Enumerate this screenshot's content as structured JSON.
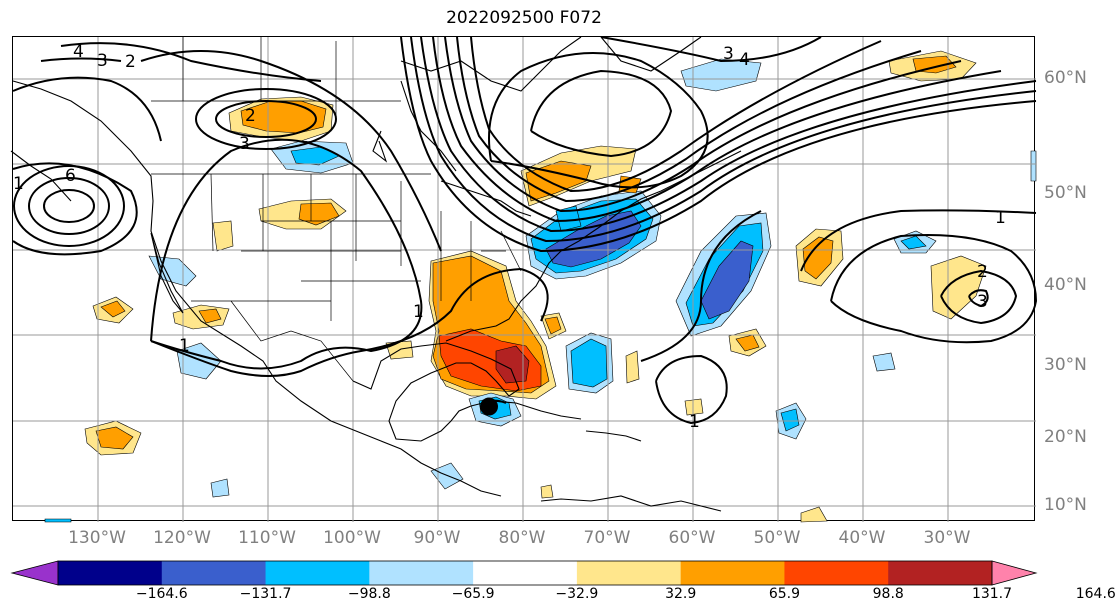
{
  "title": "2022092500 F072",
  "longitude_labels": [
    {
      "label": "130°W",
      "lon": -130
    },
    {
      "label": "120°W",
      "lon": -120
    },
    {
      "label": "110°W",
      "lon": -110
    },
    {
      "label": "100°W",
      "lon": -100
    },
    {
      "label": "90°W",
      "lon": -90
    },
    {
      "label": "80°W",
      "lon": -80
    },
    {
      "label": "70°W",
      "lon": -70
    },
    {
      "label": "60°W",
      "lon": -60
    },
    {
      "label": "50°W",
      "lon": -50
    },
    {
      "label": "40°W",
      "lon": -40
    },
    {
      "label": "30°W",
      "lon": -30
    }
  ],
  "latitude_labels": [
    {
      "label": "60°N",
      "lat": 60
    },
    {
      "label": "50°N",
      "lat": 50
    },
    {
      "label": "40°N",
      "lat": 40
    },
    {
      "label": "30°N",
      "lat": 30
    },
    {
      "label": "20°N",
      "lat": 20
    },
    {
      "label": "10°N",
      "lat": 10
    }
  ],
  "colorbar": {
    "colors": [
      "#9932cc",
      "#00008b",
      "#3a5fcd",
      "#00bfff",
      "#b0e2ff",
      "#ffffff",
      "#ffe68c",
      "#ff9f00",
      "#ff4500",
      "#b22222",
      "#ff82ab"
    ],
    "tick_labels": [
      "−164.6",
      "−131.7",
      "−98.8",
      "−65.9",
      "−32.9",
      "32.9",
      "65.9",
      "98.8",
      "131.7",
      "164.6"
    ]
  },
  "contour_labels": [
    "4",
    "3",
    "2",
    "3",
    "2",
    "6",
    "3",
    "4",
    "1",
    "1",
    "1",
    "2",
    "3",
    "1",
    "1"
  ],
  "storm_marker": {
    "lon": -84,
    "lat": 24.5
  }
}
